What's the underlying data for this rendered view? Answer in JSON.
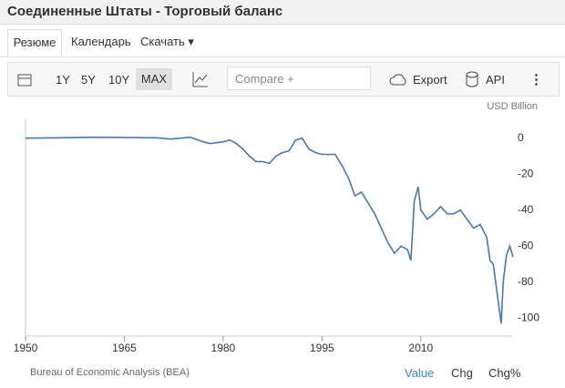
{
  "page": {
    "title": "Соединенные Штаты - Торговый баланс",
    "tabs": [
      "Резюме",
      "Календарь",
      "Скачать"
    ],
    "ranges": [
      "1Y",
      "5Y",
      "10Y",
      "MAX"
    ],
    "compare": "Compare +",
    "export": "Export",
    "api": "API",
    "source": "Bureau of Economic Analysis (BEA)",
    "modes": [
      "Value",
      "Chg",
      "Chg%"
    ]
  },
  "chart_data": {
    "type": "line",
    "y_label": "USD Billion",
    "color": "#4a76b4",
    "x": [
      1950,
      1955,
      1960,
      1965,
      1970,
      1972,
      1975,
      1977,
      1978,
      1980,
      1981,
      1982,
      1983,
      1984,
      1985,
      1986,
      1987,
      1988,
      1989,
      1990,
      1991,
      1992,
      1993,
      1994,
      1995,
      1996,
      1997,
      1998,
      1999,
      2000,
      2001,
      2002,
      2003,
      2004,
      2005,
      2006,
      2007,
      2008,
      2008.5,
      2009,
      2009.6,
      2010,
      2011,
      2012,
      2013,
      2014,
      2015,
      2016,
      2017,
      2018,
      2019,
      2020,
      2020.5,
      2021,
      2022.2,
      2022.5,
      2023,
      2023.5,
      2024
    ],
    "values": [
      0,
      0.2,
      0.5,
      0.4,
      0.2,
      -0.5,
      0.5,
      -2,
      -3,
      -2,
      -1,
      -3,
      -6,
      -10,
      -13,
      -13,
      -14,
      -10,
      -8,
      -7,
      -1,
      0,
      -6,
      -8,
      -9,
      -9,
      -9,
      -15,
      -22,
      -32,
      -30,
      -36,
      -42,
      -50,
      -58,
      -64,
      -60,
      -62,
      -68,
      -35,
      -27,
      -40,
      -45,
      -42,
      -38,
      -42,
      -42,
      -40,
      -45,
      -50,
      -48,
      -55,
      -68,
      -70,
      -103,
      -80,
      -65,
      -60,
      -66
    ],
    "xlim": [
      1950,
      2024
    ],
    "ylim": [
      -110,
      11
    ],
    "xticks": [
      1950,
      1965,
      1980,
      1995,
      2010
    ],
    "yticks": [
      0,
      -20,
      -40,
      -60,
      -80,
      -100
    ],
    "grid": false
  }
}
